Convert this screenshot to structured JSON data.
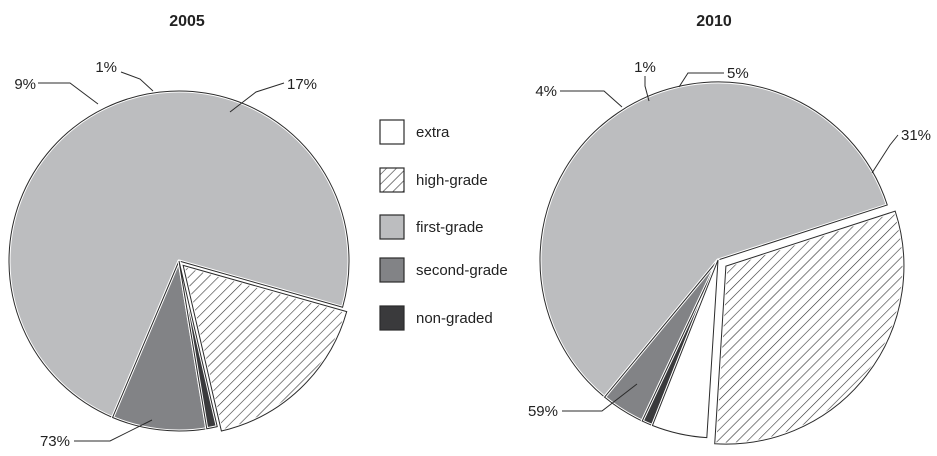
{
  "chart_data": [
    {
      "type": "pie",
      "title": "2005",
      "slices": [
        {
          "category": "high-grade",
          "value": 17,
          "label": "17%",
          "exploded": true
        },
        {
          "category": "first-grade",
          "value": 73,
          "label": "73%",
          "exploded": false
        },
        {
          "category": "second-grade",
          "value": 9,
          "label": "9%",
          "exploded": false
        },
        {
          "category": "non-graded",
          "value": 1,
          "label": "1%",
          "exploded": false
        }
      ]
    },
    {
      "type": "pie",
      "title": "2010",
      "slices": [
        {
          "category": "high-grade",
          "value": 31,
          "label": "31%",
          "exploded": true
        },
        {
          "category": "first-grade",
          "value": 59,
          "label": "59%",
          "exploded": false
        },
        {
          "category": "second-grade",
          "value": 4,
          "label": "4%",
          "exploded": false
        },
        {
          "category": "non-graded",
          "value": 1,
          "label": "1%",
          "exploded": false
        },
        {
          "category": "extra",
          "value": 5,
          "label": "5%",
          "exploded": false
        }
      ]
    }
  ],
  "legend": {
    "placement": "center",
    "items": [
      {
        "key": "extra",
        "label": "extra",
        "fill": "white"
      },
      {
        "key": "high-grade",
        "label": "high-grade",
        "fill": "hatch"
      },
      {
        "key": "first-grade",
        "label": "first-grade",
        "fill": "#bcbdbf"
      },
      {
        "key": "second-grade",
        "label": "second-grade",
        "fill": "#828386"
      },
      {
        "key": "non-graded",
        "label": "non-graded",
        "fill": "#3a3a3c"
      }
    ]
  },
  "colors": {
    "first-grade": "#bcbdbf",
    "second-grade": "#828386",
    "non-graded": "#3a3a3c",
    "extra": "#ffffff",
    "hatch_line": "#333333",
    "outline": "#2b2b2b"
  }
}
